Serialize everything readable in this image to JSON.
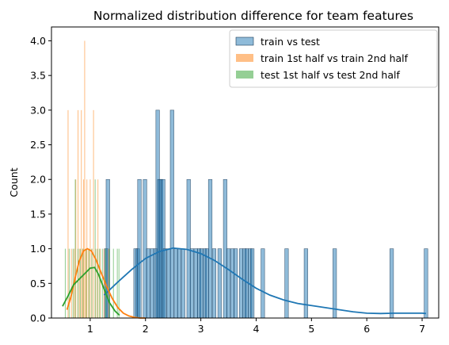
{
  "chart_data": {
    "type": "bar",
    "title": "Normalized distribution difference for team features",
    "xlabel": "",
    "ylabel": "Count",
    "xlim": [
      0.3,
      7.3
    ],
    "ylim": [
      0,
      4.2
    ],
    "x_ticks": [
      1,
      2,
      3,
      4,
      5,
      6,
      7
    ],
    "y_ticks": [
      0.0,
      0.5,
      1.0,
      1.5,
      2.0,
      2.5,
      3.0,
      3.5,
      4.0
    ],
    "y_tick_labels": [
      "0.0",
      "0.5",
      "1.0",
      "1.5",
      "2.0",
      "2.5",
      "3.0",
      "3.5",
      "4.0"
    ],
    "grid": false,
    "legend_position": "top-right",
    "series": [
      {
        "name": "train vs test",
        "color": "#1f77b4",
        "bin_width": 0.0657,
        "bars": [
          [
            1.29,
            1
          ],
          [
            1.32,
            2
          ],
          [
            1.82,
            1
          ],
          [
            1.86,
            1
          ],
          [
            1.89,
            2
          ],
          [
            1.99,
            2
          ],
          [
            2.05,
            1
          ],
          [
            2.12,
            1
          ],
          [
            2.18,
            1
          ],
          [
            2.22,
            3
          ],
          [
            2.25,
            2
          ],
          [
            2.28,
            2
          ],
          [
            2.32,
            2
          ],
          [
            2.35,
            1
          ],
          [
            2.42,
            1
          ],
          [
            2.48,
            3
          ],
          [
            2.55,
            1
          ],
          [
            2.61,
            1
          ],
          [
            2.68,
            1
          ],
          [
            2.78,
            2
          ],
          [
            2.84,
            1
          ],
          [
            2.91,
            1
          ],
          [
            2.97,
            1
          ],
          [
            3.01,
            1
          ],
          [
            3.07,
            1
          ],
          [
            3.11,
            1
          ],
          [
            3.17,
            2
          ],
          [
            3.24,
            1
          ],
          [
            3.34,
            1
          ],
          [
            3.44,
            2
          ],
          [
            3.5,
            1
          ],
          [
            3.57,
            1
          ],
          [
            3.63,
            1
          ],
          [
            3.73,
            1
          ],
          [
            3.79,
            1
          ],
          [
            3.83,
            1
          ],
          [
            3.89,
            1
          ],
          [
            3.93,
            1
          ],
          [
            4.12,
            1
          ],
          [
            4.55,
            1
          ],
          [
            4.9,
            1
          ],
          [
            5.42,
            1
          ],
          [
            6.45,
            1
          ],
          [
            7.07,
            1
          ]
        ],
        "kde": [
          [
            1.25,
            0.33
          ],
          [
            1.5,
            0.52
          ],
          [
            1.75,
            0.7
          ],
          [
            2.0,
            0.86
          ],
          [
            2.25,
            0.96
          ],
          [
            2.5,
            1.01
          ],
          [
            2.75,
            0.99
          ],
          [
            3.0,
            0.93
          ],
          [
            3.25,
            0.83
          ],
          [
            3.5,
            0.7
          ],
          [
            3.75,
            0.56
          ],
          [
            4.0,
            0.43
          ],
          [
            4.25,
            0.33
          ],
          [
            4.5,
            0.26
          ],
          [
            4.75,
            0.21
          ],
          [
            5.0,
            0.18
          ],
          [
            5.25,
            0.15
          ],
          [
            5.5,
            0.12
          ],
          [
            5.75,
            0.09
          ],
          [
            6.0,
            0.07
          ],
          [
            6.25,
            0.065
          ],
          [
            6.5,
            0.07
          ],
          [
            6.75,
            0.07
          ],
          [
            7.0,
            0.07
          ],
          [
            7.07,
            0.065
          ]
        ]
      },
      {
        "name": "train 1st half vs train 2nd half",
        "color": "#ff7f0e",
        "bin_width": 0.015,
        "bars": [
          [
            0.6,
            3
          ],
          [
            0.66,
            1
          ],
          [
            0.71,
            1
          ],
          [
            0.74,
            2
          ],
          [
            0.78,
            3
          ],
          [
            0.81,
            1
          ],
          [
            0.84,
            3
          ],
          [
            0.86,
            1
          ],
          [
            0.88,
            2
          ],
          [
            0.9,
            4
          ],
          [
            0.92,
            1
          ],
          [
            0.94,
            2
          ],
          [
            0.97,
            1
          ],
          [
            1.0,
            2
          ],
          [
            1.03,
            1
          ],
          [
            1.06,
            3
          ],
          [
            1.1,
            1
          ],
          [
            1.14,
            2
          ],
          [
            1.18,
            1
          ],
          [
            1.25,
            1
          ],
          [
            1.33,
            1
          ]
        ],
        "kde": [
          [
            0.58,
            0.12
          ],
          [
            0.65,
            0.3
          ],
          [
            0.72,
            0.55
          ],
          [
            0.8,
            0.82
          ],
          [
            0.88,
            0.97
          ],
          [
            0.95,
            1.0
          ],
          [
            1.02,
            0.97
          ],
          [
            1.1,
            0.85
          ],
          [
            1.2,
            0.65
          ],
          [
            1.3,
            0.45
          ],
          [
            1.4,
            0.28
          ],
          [
            1.5,
            0.15
          ],
          [
            1.6,
            0.07
          ],
          [
            1.7,
            0.03
          ],
          [
            1.8,
            0.01
          ],
          [
            1.9,
            0.0
          ],
          [
            2.0,
            0.0
          ]
        ]
      },
      {
        "name": "test 1st half vs test 2nd half",
        "color": "#2ca02c",
        "bin_width": 0.015,
        "bars": [
          [
            0.55,
            1
          ],
          [
            0.62,
            1
          ],
          [
            0.69,
            1
          ],
          [
            0.73,
            2
          ],
          [
            0.78,
            1
          ],
          [
            0.82,
            1
          ],
          [
            0.87,
            1
          ],
          [
            0.93,
            1
          ],
          [
            0.98,
            1
          ],
          [
            1.03,
            1
          ],
          [
            1.09,
            2
          ],
          [
            1.13,
            1
          ],
          [
            1.17,
            1
          ],
          [
            1.22,
            1
          ],
          [
            1.28,
            1
          ],
          [
            1.35,
            1
          ],
          [
            1.42,
            1
          ],
          [
            1.49,
            1
          ],
          [
            1.52,
            1
          ]
        ],
        "kde": [
          [
            0.5,
            0.17
          ],
          [
            0.6,
            0.32
          ],
          [
            0.7,
            0.48
          ],
          [
            0.8,
            0.56
          ],
          [
            0.9,
            0.64
          ],
          [
            1.0,
            0.72
          ],
          [
            1.08,
            0.73
          ],
          [
            1.15,
            0.63
          ],
          [
            1.25,
            0.42
          ],
          [
            1.35,
            0.22
          ],
          [
            1.45,
            0.1
          ],
          [
            1.53,
            0.04
          ]
        ]
      }
    ]
  }
}
